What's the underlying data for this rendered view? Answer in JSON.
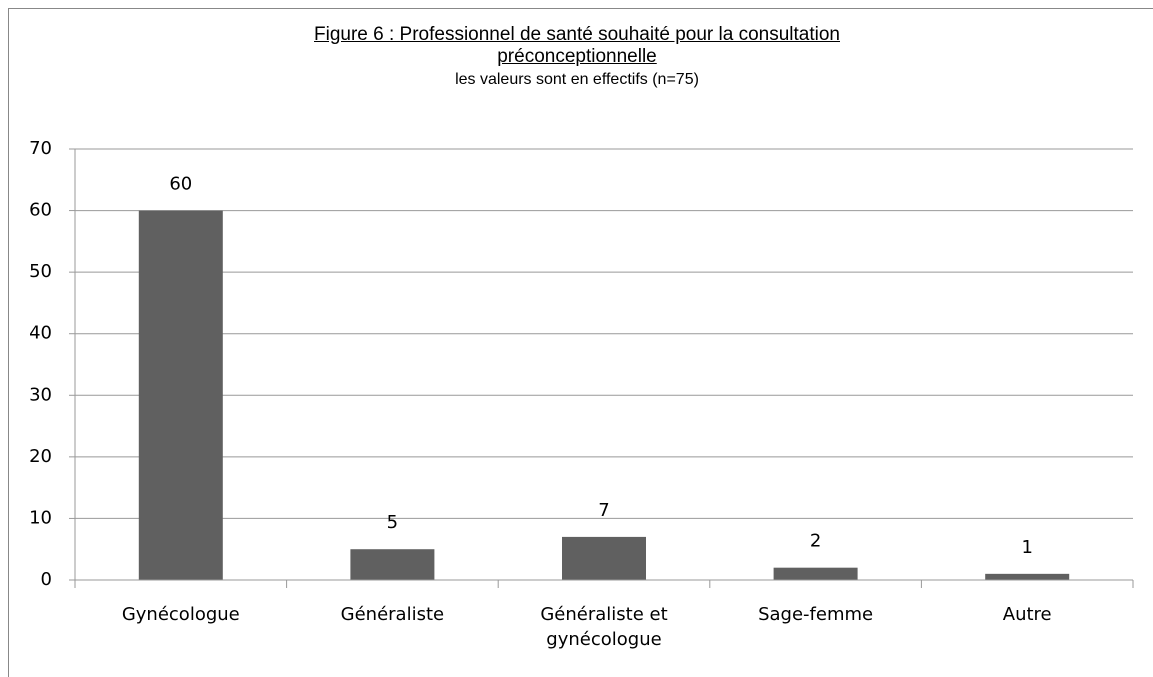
{
  "chart_data": {
    "type": "bar",
    "title": "Figure 6 : Professionnel de santé souhaité pour la consultation préconceptionnelle",
    "subtitle": "les valeurs sont en effectifs (n=75)",
    "categories": [
      "Gynécologue",
      "Généraliste",
      "Généraliste et gynécologue",
      "Sage-femme",
      "Autre"
    ],
    "values": [
      60,
      5,
      7,
      2,
      1
    ],
    "color": "#606060",
    "ylim": [
      0,
      70
    ],
    "yticks": [
      0,
      10,
      20,
      30,
      40,
      50,
      60,
      70
    ],
    "grid": true
  }
}
